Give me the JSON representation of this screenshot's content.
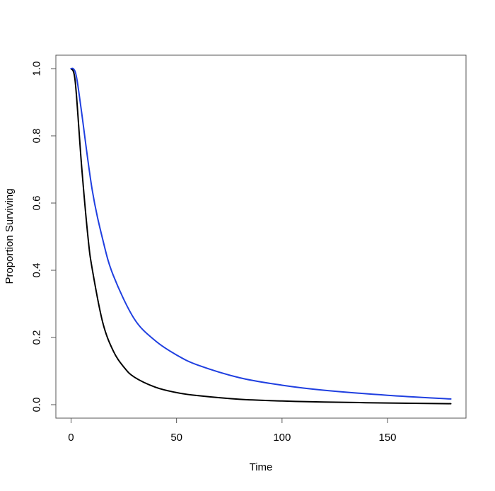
{
  "chart_data": {
    "type": "line",
    "title": "",
    "xlabel": "Time",
    "ylabel": "Proportion Surviving",
    "xlim": [
      -7.2,
      187.2
    ],
    "ylim": [
      -0.04,
      1.04
    ],
    "x_ticks": [
      0,
      50,
      100,
      150
    ],
    "x_tick_labels": [
      "0",
      "50",
      "100",
      "150"
    ],
    "y_ticks": [
      0.0,
      0.2,
      0.4,
      0.6,
      0.8,
      1.0
    ],
    "y_tick_labels": [
      "0.0",
      "0.2",
      "0.4",
      "0.6",
      "0.8",
      "1.0"
    ],
    "grid": false,
    "legend": "none",
    "series": [
      {
        "color": "#000000",
        "x": [
          0,
          2,
          5,
          8,
          10,
          15,
          20,
          25,
          30,
          40,
          50,
          60,
          80,
          100,
          120,
          150,
          180
        ],
        "y": [
          1.0,
          0.96,
          0.71,
          0.5,
          0.405,
          0.245,
          0.16,
          0.112,
          0.082,
          0.052,
          0.036,
          0.027,
          0.016,
          0.011,
          0.008,
          0.005,
          0.003
        ]
      },
      {
        "color": "#1f3fe0",
        "x": [
          0,
          1,
          2,
          3,
          5,
          10,
          15,
          20,
          30,
          40,
          50,
          60,
          80,
          100,
          120,
          150,
          180
        ],
        "y": [
          1.0,
          1.0,
          0.99,
          0.96,
          0.87,
          0.64,
          0.492,
          0.385,
          0.255,
          0.19,
          0.148,
          0.118,
          0.08,
          0.058,
          0.043,
          0.028,
          0.017
        ]
      }
    ]
  }
}
